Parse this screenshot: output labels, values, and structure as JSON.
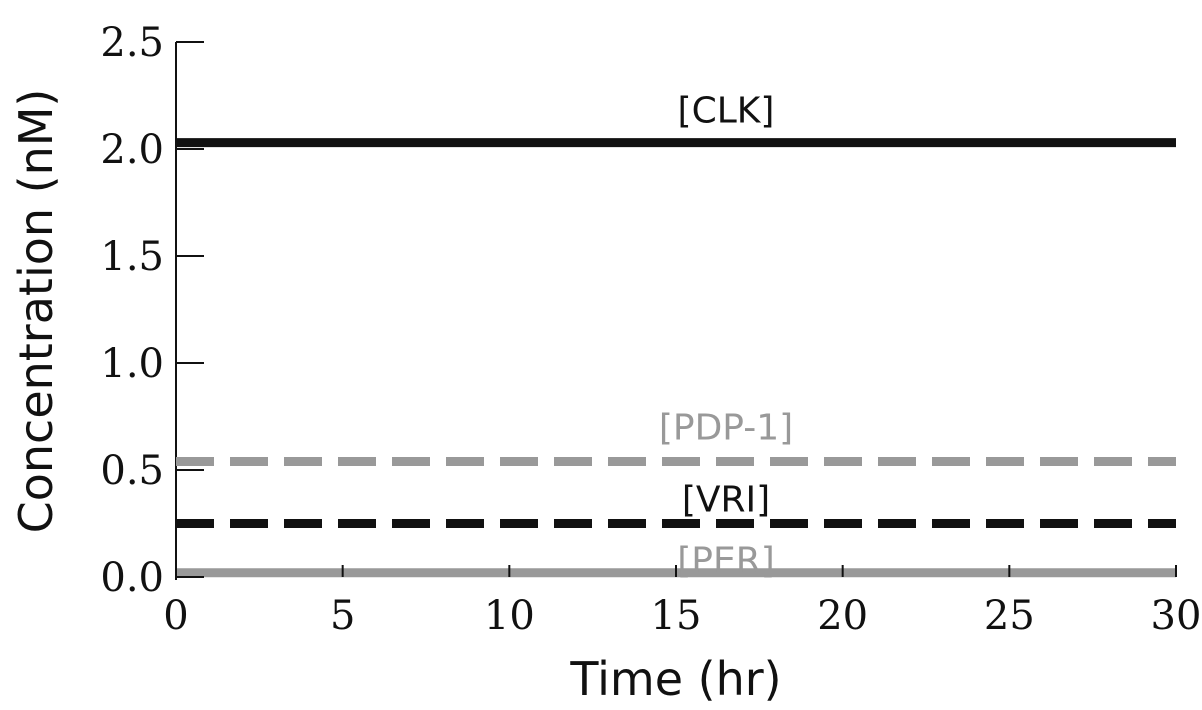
{
  "chart_data": {
    "type": "line",
    "xlabel": "Time (hr)",
    "ylabel": "Concentration (nM)",
    "xlim": [
      0,
      30
    ],
    "ylim": [
      0,
      2.5
    ],
    "xticks": [
      "0",
      "5",
      "10",
      "15",
      "20",
      "25",
      "30"
    ],
    "yticks": [
      "0.0",
      "0.5",
      "1.0",
      "1.5",
      "2.0",
      "2.5"
    ],
    "grid": false,
    "legend": "none",
    "series": [
      {
        "name": "[CLK]",
        "x": [
          0,
          30
        ],
        "y": [
          2.03,
          2.03
        ],
        "color": "#111111",
        "dash": "solid"
      },
      {
        "name": "[PDP-1]",
        "x": [
          0,
          30
        ],
        "y": [
          0.54,
          0.54
        ],
        "color": "#999999",
        "dash": "dashed"
      },
      {
        "name": "[VRI]",
        "x": [
          0,
          30
        ],
        "y": [
          0.25,
          0.25
        ],
        "color": "#111111",
        "dash": "dashed"
      },
      {
        "name": "[PER]",
        "x": [
          0,
          30
        ],
        "y": [
          0.02,
          0.02
        ],
        "color": "#999999",
        "dash": "solid"
      }
    ]
  }
}
